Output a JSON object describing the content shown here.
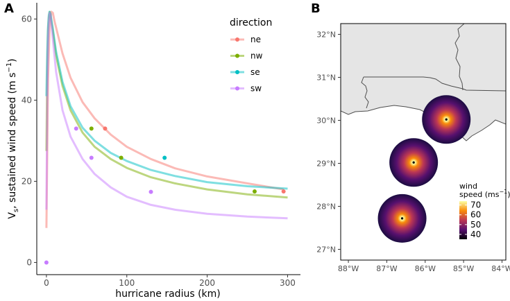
{
  "panels": {
    "a": "A",
    "b": "B"
  },
  "chart_data": [
    {
      "type": "line",
      "xlabel": "hurricane radius (km)",
      "ylabel_main": "V",
      "ylabel_sub": "s",
      "ylabel_rest": ", sustained wind speed (m s",
      "ylabel_sup": "−1",
      "ylabel_close": ")",
      "xlim": [
        -12,
        316
      ],
      "ylim": [
        -3,
        64
      ],
      "xticks": [
        0,
        100,
        200,
        300
      ],
      "yticks": [
        0,
        20,
        40,
        60
      ],
      "legend": {
        "title": "direction",
        "placement": "top-right"
      },
      "series": [
        {
          "name": "ne",
          "color": "#F8766D",
          "x": [
            0,
            2,
            4,
            6,
            8,
            10,
            15,
            20,
            30,
            45,
            60,
            80,
            100,
            130,
            160,
            200,
            250,
            295
          ],
          "y": [
            8.5,
            45,
            58,
            61.8,
            61.5,
            59.5,
            55.5,
            51.5,
            45.5,
            39.5,
            35.5,
            31.5,
            28.5,
            25.5,
            23.2,
            21.2,
            19.5,
            18
          ],
          "points": [
            [
              73,
              33
            ],
            [
              295,
              17.5
            ]
          ]
        },
        {
          "name": "nw",
          "color": "#7CAE00",
          "x": [
            0,
            1,
            2,
            3,
            4,
            5,
            8,
            12,
            20,
            30,
            45,
            60,
            80,
            100,
            130,
            160,
            200,
            250,
            300
          ],
          "y": [
            27.5,
            48,
            57,
            60.5,
            61.7,
            61,
            57,
            51,
            43.5,
            37.5,
            32,
            28.5,
            25.5,
            23.3,
            21,
            19.5,
            18,
            16.8,
            16
          ],
          "points": [
            [
              56,
              33
            ],
            [
              93,
              25.8
            ],
            [
              259,
              17.5
            ]
          ]
        },
        {
          "name": "se",
          "color": "#00BFC4",
          "x": [
            0,
            1,
            2,
            3,
            4,
            5,
            8,
            12,
            20,
            30,
            45,
            60,
            80,
            100,
            130,
            160,
            200,
            250,
            300
          ],
          "y": [
            41,
            52,
            58,
            61,
            61.8,
            61.3,
            57.5,
            52,
            44.5,
            38.5,
            33.2,
            30,
            27,
            25,
            22.8,
            21.3,
            19.8,
            18.8,
            18.2
          ],
          "points": [
            [
              147,
              25.8
            ]
          ]
        },
        {
          "name": "sw",
          "color": "#C77CFF",
          "x": [
            0,
            1,
            2,
            3,
            4,
            5,
            8,
            12,
            20,
            30,
            45,
            60,
            80,
            100,
            130,
            160,
            200,
            250,
            300
          ],
          "y": [
            13,
            40,
            54,
            59.5,
            61.5,
            61,
            55,
            47,
            37.5,
            31,
            25.5,
            21.8,
            18.5,
            16.2,
            14.2,
            13,
            12,
            11.3,
            10.9
          ],
          "points": [
            [
              37,
              33
            ],
            [
              56,
              25.8
            ],
            [
              130,
              17.4
            ]
          ]
        }
      ],
      "origin_point": {
        "x": 0,
        "y": 0,
        "color": "#C77CFF"
      }
    },
    {
      "type": "heatmap",
      "xlim": [
        -88.2,
        -83.9
      ],
      "ylim": [
        26.75,
        32.25
      ],
      "xticks": [
        "88°W",
        "87°W",
        "86°W",
        "85°W",
        "84°W"
      ],
      "xtick_values": [
        -88,
        -87,
        -86,
        -85,
        -84
      ],
      "yticks": [
        "27°N",
        "28°N",
        "29°N",
        "30°N",
        "31°N",
        "32°N"
      ],
      "ytick_values": [
        27,
        28,
        29,
        30,
        31,
        32
      ],
      "land_color": "#e5e5e5",
      "sea_color": "#ffffff",
      "storm_positions": [
        {
          "lon": -85.45,
          "lat": 30.02
        },
        {
          "lon": -86.3,
          "lat": 29.02
        },
        {
          "lon": -86.6,
          "lat": 27.72
        }
      ],
      "colorbar": {
        "title_line1": "wind",
        "title_line2": "speed (ms",
        "title_sup": "−1",
        "title_close": ")",
        "labels": [
          "70",
          "60",
          "50",
          "40"
        ],
        "label_values": [
          70,
          60,
          50,
          40
        ],
        "range": [
          35,
          74
        ],
        "colors": [
          "#FCFFA4",
          "#F98C0A",
          "#BC3754",
          "#57106E",
          "#000004"
        ]
      }
    }
  ]
}
